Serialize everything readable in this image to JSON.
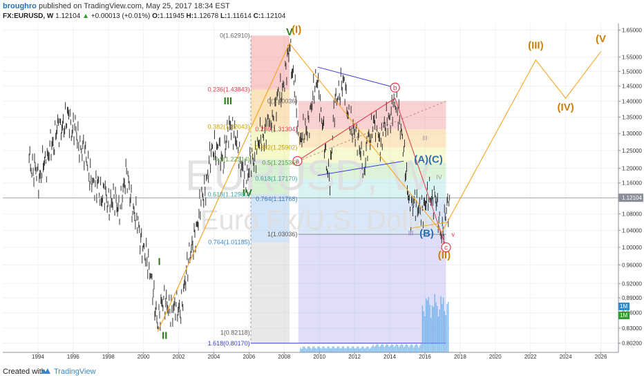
{
  "header": {
    "author": "broughro",
    "published_text": "published on TradingView.com, May 25, 2017 18:34 EST",
    "symbol": "FX:EURUSD, W",
    "last": "1.12104",
    "change": "+0.00013 (+0.01%)",
    "open_label": "O:",
    "open": "1.11945",
    "high_label": "H:",
    "high": "1.12678",
    "low_label": "L:",
    "low": "1.11614",
    "close_label": "C:",
    "close": "1.12104"
  },
  "watermark": {
    "symbol": "EURUSD, W",
    "name": "Euro Fx/U.S. Dollar"
  },
  "footer": {
    "created_with": "Created with",
    "brand": "TradingView"
  },
  "colors": {
    "candle": "#333333",
    "wave_line": "#f5a623",
    "wave_label_green": "#2f7d1c",
    "wave_label_orange": "#c8820a",
    "channel": "#3b3bd9",
    "abc_line": "#e0364a",
    "fib_red": "#f28b8b",
    "fib_orange": "#f7c26b",
    "fib_yellow": "#eef08a",
    "fib_green": "#a8dfa0",
    "fib_teal": "#9fe0e0",
    "fib_blue": "#9fc4ee",
    "fib_purple": "#b9b3ee",
    "fib_grey": "#cccccc",
    "volume": "#5aa8e8",
    "price_line": "#777777"
  },
  "chart_data": {
    "type": "line",
    "title": "EURUSD, W",
    "x_axis": {
      "label": "",
      "ticks": [
        "1994",
        "1996",
        "1998",
        "2000",
        "2002",
        "2004",
        "2006",
        "2008",
        "2010",
        "2012",
        "2014",
        "2016",
        "2018",
        "2020",
        "2022",
        "2024",
        "2026"
      ],
      "range": [
        1992,
        2027
      ]
    },
    "y_axis": {
      "label": "",
      "scale": "log",
      "ticks": [
        "1.65000",
        "1.55000",
        "1.50000",
        "1.45000",
        "1.40000",
        "1.35000",
        "1.30000",
        "1.25000",
        "1.20000",
        "1.16000",
        "1.12000",
        "1.08000",
        "1.04000",
        "1.00000",
        "0.96000",
        "0.92000",
        "0.89000",
        "0.86000",
        "0.83000",
        "0.80200"
      ],
      "range": [
        0.785,
        1.675
      ]
    },
    "last_price": "1.12104",
    "volume_badges": [
      "1M",
      "1M"
    ],
    "series": [
      {
        "name": "EURUSD weekly close (approx)",
        "x": [
          1993.5,
          1994.0,
          1994.6,
          1995.2,
          1995.6,
          1996.2,
          1996.9,
          1997.3,
          1997.9,
          1998.6,
          1999.0,
          1999.5,
          2000.0,
          2000.4,
          2000.8,
          2001.3,
          2001.7,
          2002.2,
          2002.6,
          2003.0,
          2003.5,
          2004.0,
          2004.5,
          2004.95,
          2005.5,
          2005.9,
          2006.4,
          2006.9,
          2007.4,
          2007.9,
          2008.3,
          2008.55,
          2008.85,
          2009.2,
          2009.9,
          2010.4,
          2010.6,
          2010.9,
          2011.3,
          2011.6,
          2012.0,
          2012.55,
          2013.0,
          2013.5,
          2014.2,
          2014.4,
          2014.8,
          2015.2,
          2015.5,
          2015.9,
          2016.3,
          2016.6,
          2016.95,
          2017.15,
          2017.4
        ],
        "y": [
          1.23,
          1.17,
          1.24,
          1.32,
          1.35,
          1.3,
          1.2,
          1.15,
          1.12,
          1.1,
          1.18,
          1.08,
          1.0,
          0.93,
          0.85,
          0.89,
          0.86,
          0.88,
          0.97,
          1.05,
          1.15,
          1.27,
          1.22,
          1.34,
          1.22,
          1.18,
          1.25,
          1.31,
          1.36,
          1.45,
          1.58,
          1.47,
          1.27,
          1.3,
          1.48,
          1.21,
          1.19,
          1.4,
          1.48,
          1.38,
          1.3,
          1.21,
          1.33,
          1.28,
          1.39,
          1.37,
          1.26,
          1.08,
          1.12,
          1.08,
          1.13,
          1.11,
          1.04,
          1.07,
          1.121
        ]
      },
      {
        "name": "Elliott projection",
        "x": [
          2000.8,
          2008.3,
          2016.95,
          2022.3,
          2024.0,
          2026.0
        ],
        "y": [
          0.823,
          1.6,
          1.035,
          1.54,
          1.41,
          1.57
        ]
      }
    ],
    "wave_labels": [
      {
        "text": "I",
        "x": 2000.9,
        "y": 0.96,
        "color": "green"
      },
      {
        "text": "II",
        "x": 2001.2,
        "y": 0.81,
        "color": "green"
      },
      {
        "text": "III",
        "x": 2004.8,
        "y": 1.39,
        "color": "green"
      },
      {
        "text": "IV",
        "x": 2005.9,
        "y": 1.125,
        "color": "green"
      },
      {
        "text": "V",
        "x": 2008.3,
        "y": 1.63,
        "color": "green"
      },
      {
        "text": "(I)",
        "x": 2008.7,
        "y": 1.64,
        "color": "orange"
      },
      {
        "text": "(II)",
        "x": 2017.1,
        "y": 0.975,
        "color": "orange"
      },
      {
        "text": "(III)",
        "x": 2022.3,
        "y": 1.58,
        "color": "orange"
      },
      {
        "text": "(IV)",
        "x": 2024.0,
        "y": 1.37,
        "color": "orange"
      },
      {
        "text": "(V",
        "x": 2026.0,
        "y": 1.605,
        "color": "orange"
      },
      {
        "text": "(A)(C)",
        "x": 2016.2,
        "y": 1.215,
        "color": "blue"
      },
      {
        "text": "(B)",
        "x": 2016.1,
        "y": 1.025,
        "color": "blue"
      },
      {
        "text": "a",
        "x": 2008.75,
        "y": 1.22,
        "color": "red-circle"
      },
      {
        "text": "b",
        "x": 2014.3,
        "y": 1.445,
        "color": "red-circle"
      },
      {
        "text": "c",
        "x": 2017.2,
        "y": 1.0,
        "color": "red-circle"
      },
      {
        "text": "v",
        "x": 2017.6,
        "y": 1.025,
        "color": "red-small"
      },
      {
        "text": "III",
        "x": 2015.2,
        "y": 1.028,
        "color": "purple-small"
      },
      {
        "text": "IV",
        "x": 2016.8,
        "y": 1.17,
        "color": "grey-small"
      },
      {
        "text": "III",
        "x": 2016.0,
        "y": 1.28,
        "color": "grey-small"
      }
    ],
    "fib_levels_left": [
      {
        "label": "0(1.62910)",
        "y": 1.6291
      },
      {
        "label": "0.236(1.43843)",
        "y": 1.43843
      },
      {
        "label": "0.382(1.32043)",
        "y": 1.32043
      },
      {
        "label": "0.5(1.22514)",
        "y": 1.22514
      },
      {
        "label": "0.618(1.12980)",
        "y": 1.1298
      },
      {
        "label": "0.764(1.01185)",
        "y": 1.01185
      },
      {
        "label": "1(0.82118)",
        "y": 0.82118
      },
      {
        "label": "1.618(0.80170)",
        "y": 0.8017
      }
    ],
    "fib_levels_right": [
      {
        "label": "0(1.40036)",
        "y": 1.40036
      },
      {
        "label": "0.236(1.31304)",
        "y": 1.31304
      },
      {
        "label": "0.382(1.25902)",
        "y": 1.25902
      },
      {
        "label": "0.5(1.21536)",
        "y": 1.21536
      },
      {
        "label": "0.618(1.17170)",
        "y": 1.1717
      },
      {
        "label": "0.764(1.11768)",
        "y": 1.11768
      },
      {
        "label": "1(1.03036)",
        "y": 1.03036
      }
    ]
  }
}
